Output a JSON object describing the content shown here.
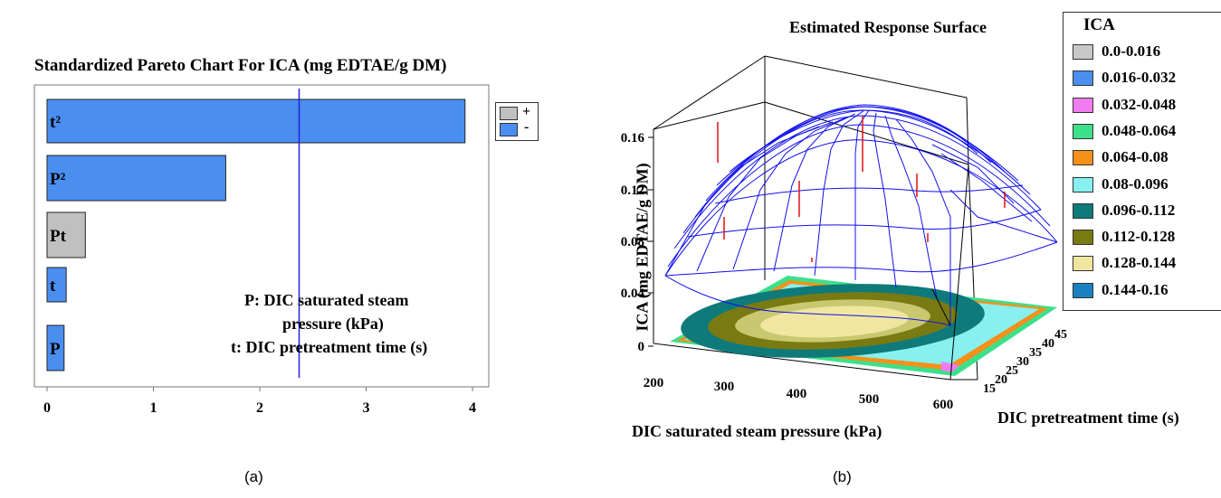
{
  "panel_a": {
    "title": "Standardized Pareto Chart For ICA (mg EDTAE/g DM)",
    "legend": [
      {
        "symbol": "+",
        "color": "#c0c0c0"
      },
      {
        "symbol": "-",
        "color": "#4a8ef0"
      }
    ],
    "annotation": [
      "P: DIC saturated steam",
      "pressure (kPa)",
      "t: DIC pretreatment time (s)"
    ],
    "caption": "(a)"
  },
  "panel_b": {
    "title": "Estimated Response Surface",
    "xlabel": "DIC saturated steam pressure (kPa)",
    "ylabel": "DIC pretreatment time (s)",
    "zlabel": "ICA (mg EDTAE/g DM)",
    "legend_title": "ICA",
    "legend": [
      {
        "label": "0.0-0.016",
        "color": "#c8c8c8"
      },
      {
        "label": "0.016-0.032",
        "color": "#4a8ef0"
      },
      {
        "label": "0.032-0.048",
        "color": "#f07cf0"
      },
      {
        "label": "0.048-0.064",
        "color": "#3ce08a"
      },
      {
        "label": "0.064-0.08",
        "color": "#f5901a"
      },
      {
        "label": "0.08-0.096",
        "color": "#88f0ee"
      },
      {
        "label": "0.096-0.112",
        "color": "#0f7a7a"
      },
      {
        "label": "0.112-0.128",
        "color": "#7a7a12"
      },
      {
        "label": "0.128-0.144",
        "color": "#f0e6a0"
      },
      {
        "label": "0.144-0.16",
        "color": "#1a80c0"
      }
    ],
    "caption": "(b)"
  },
  "chart_data": [
    {
      "type": "bar",
      "orientation": "horizontal",
      "title": "Standardized Pareto Chart For ICA (mg EDTAE/g DM)",
      "categories": [
        "t²",
        "P²",
        "Pt",
        "t",
        "P"
      ],
      "values": [
        3.93,
        1.68,
        0.36,
        0.18,
        0.16
      ],
      "signs": [
        "-",
        "-",
        "+",
        "-",
        "-"
      ],
      "xlim": [
        0,
        4
      ],
      "xticks": [
        "0",
        "1",
        "2",
        "3",
        "4"
      ],
      "reference_line": 2.37,
      "legend_placement": "right"
    },
    {
      "type": "surface",
      "title": "Estimated Response Surface",
      "x_axis": {
        "label": "DIC saturated steam pressure (kPa)",
        "ticks": [
          "200",
          "300",
          "400",
          "500",
          "600"
        ]
      },
      "y_axis": {
        "label": "DIC pretreatment time (s)",
        "ticks": [
          "15",
          "20",
          "25",
          "30",
          "35",
          "40",
          "45"
        ]
      },
      "z_axis": {
        "label": "ICA (mg EDTAE/g DM)",
        "ticks": [
          "0",
          "0.04",
          "0.08",
          "0.12",
          "0.16"
        ]
      },
      "legend_title": "ICA",
      "legend_placement": "right"
    }
  ]
}
